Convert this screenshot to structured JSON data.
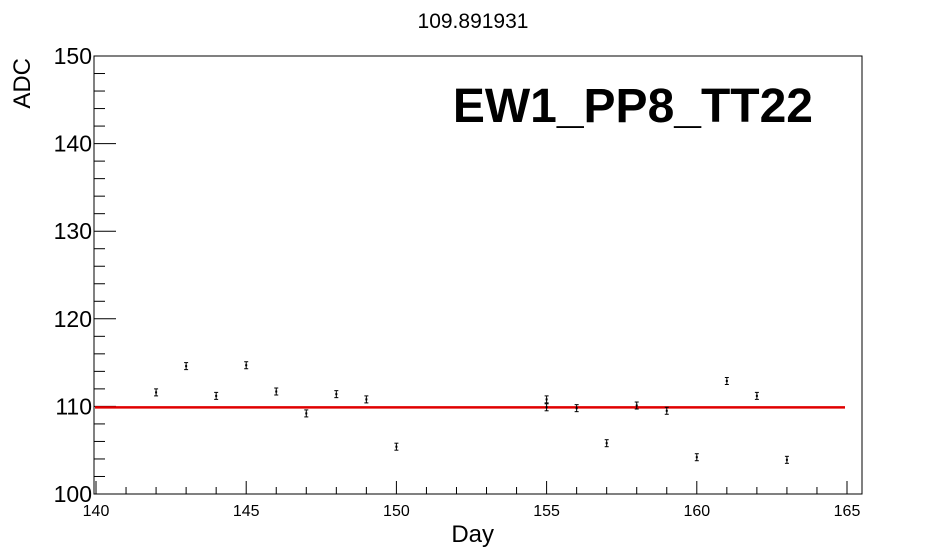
{
  "chart_data": {
    "type": "scatter",
    "title": "109.891931",
    "annotation": "EW1_PP8_TT22",
    "xlabel": "Day",
    "ylabel": "ADC",
    "xlim": [
      140,
      165
    ],
    "ylim": [
      100,
      150
    ],
    "x_ticks": [
      "140",
      "145",
      "150",
      "155",
      "160",
      "165"
    ],
    "y_ticks": [
      "100",
      "110",
      "120",
      "130",
      "140",
      "150"
    ],
    "grid": false,
    "fit_value": 109.891931,
    "fit_color": "#e00000",
    "marker_color": "#000000",
    "series": [
      {
        "points": [
          {
            "x": 142,
            "y": 111.6,
            "err": 0.4
          },
          {
            "x": 143,
            "y": 114.6,
            "err": 0.4
          },
          {
            "x": 144,
            "y": 111.2,
            "err": 0.4
          },
          {
            "x": 145,
            "y": 114.7,
            "err": 0.4
          },
          {
            "x": 146,
            "y": 111.7,
            "err": 0.4
          },
          {
            "x": 147,
            "y": 109.2,
            "err": 0.4
          },
          {
            "x": 148,
            "y": 111.4,
            "err": 0.4
          },
          {
            "x": 149,
            "y": 110.8,
            "err": 0.4
          },
          {
            "x": 150,
            "y": 105.4,
            "err": 0.4
          },
          {
            "x": 155,
            "y": 110.8,
            "err": 0.4
          },
          {
            "x": 155,
            "y": 109.9,
            "err": 0.4
          },
          {
            "x": 156,
            "y": 109.8,
            "err": 0.4
          },
          {
            "x": 157,
            "y": 105.8,
            "err": 0.4
          },
          {
            "x": 158,
            "y": 110.1,
            "err": 0.4
          },
          {
            "x": 159,
            "y": 109.5,
            "err": 0.4
          },
          {
            "x": 160,
            "y": 104.2,
            "err": 0.4
          },
          {
            "x": 161,
            "y": 112.9,
            "err": 0.4
          },
          {
            "x": 162,
            "y": 111.2,
            "err": 0.4
          },
          {
            "x": 163,
            "y": 103.9,
            "err": 0.4
          }
        ]
      }
    ]
  }
}
